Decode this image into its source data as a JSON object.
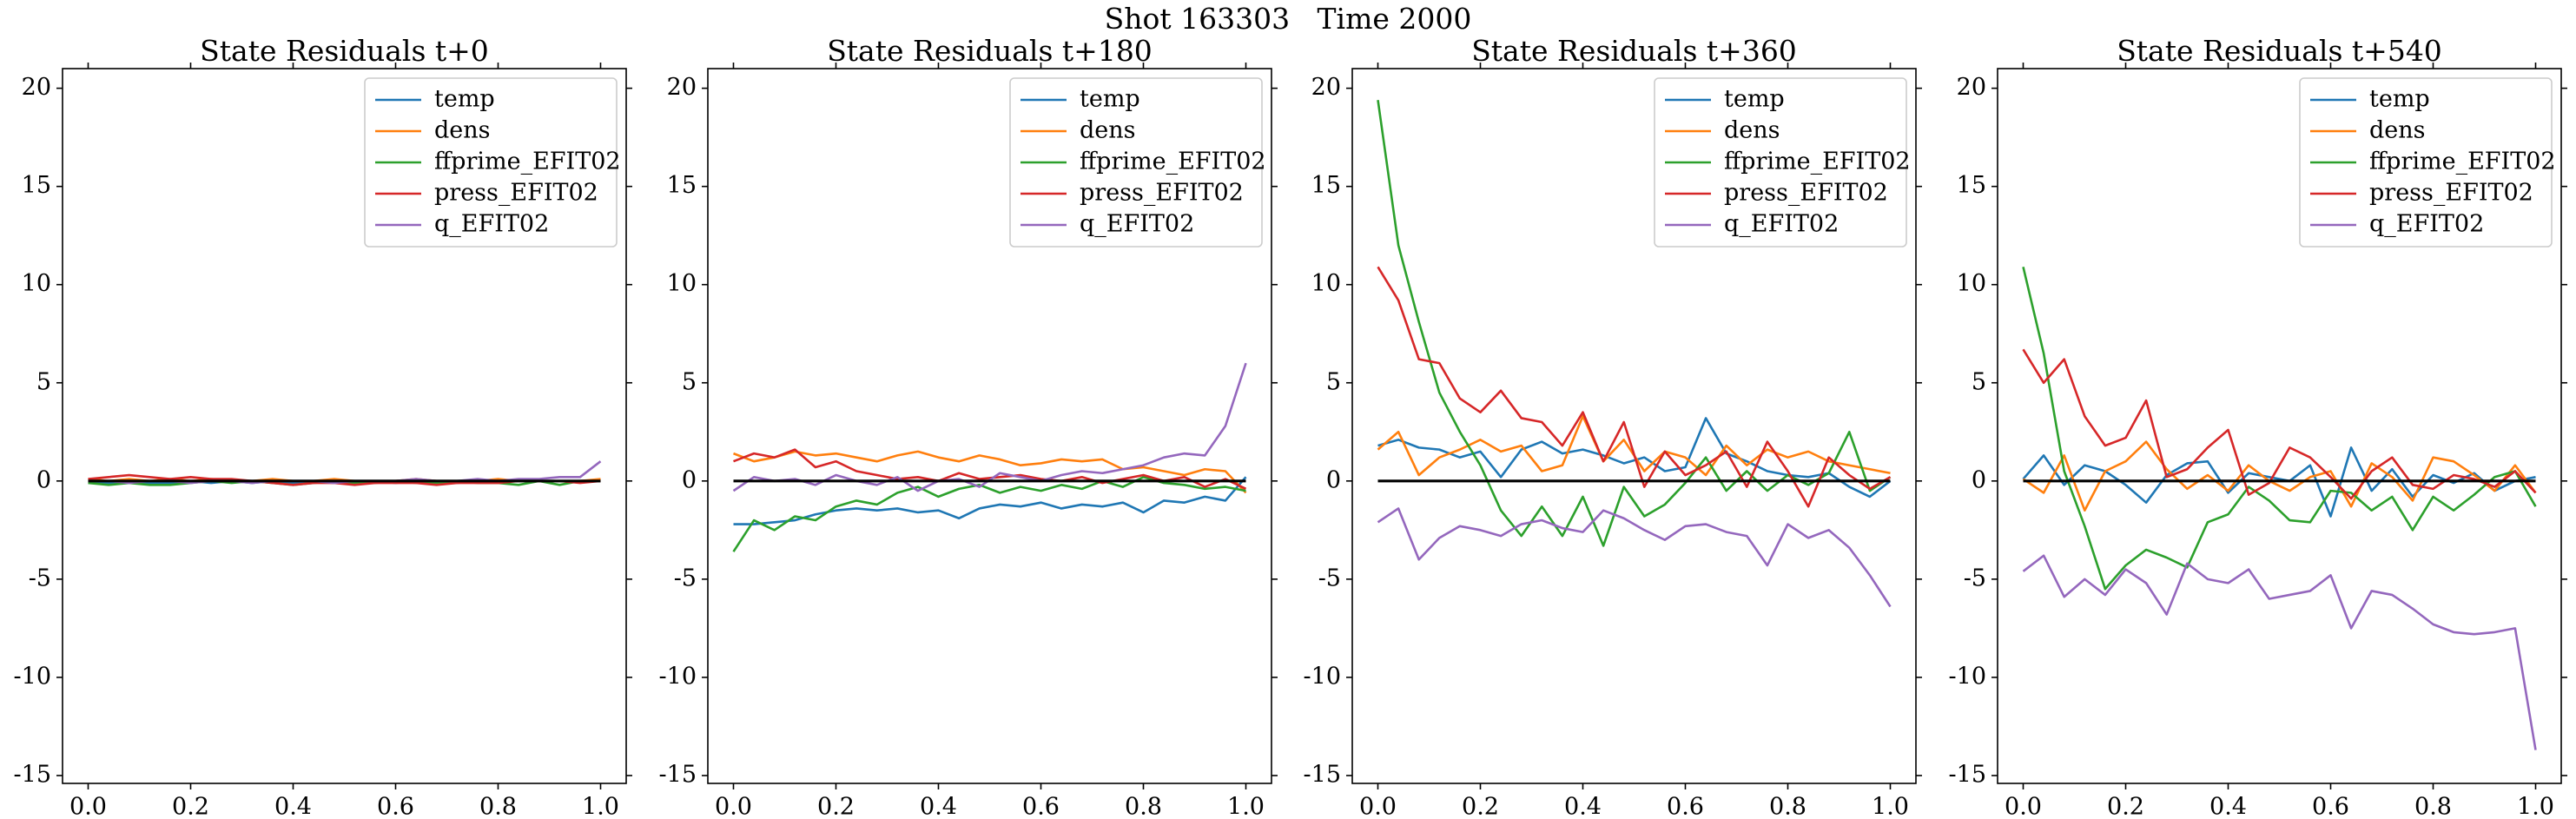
{
  "title": "Shot 163303   Time 2000",
  "chart_data": [
    {
      "type": "line",
      "title": "State Residuals t+0",
      "legend": "upper right",
      "grid": false,
      "hline": 0,
      "xlim": [
        -0.05,
        1.05
      ],
      "ylim": [
        -15.4,
        21
      ],
      "xticks": [
        {
          "value": 0,
          "label": "0.0"
        },
        {
          "value": 0.2,
          "label": "0.2"
        },
        {
          "value": 0.4,
          "label": "0.4"
        },
        {
          "value": 0.6,
          "label": "0.6"
        },
        {
          "value": 0.8,
          "label": "0.8"
        },
        {
          "value": 1,
          "label": "1.0"
        }
      ],
      "yticks": [
        -15,
        -10,
        -5,
        0,
        5,
        10,
        15,
        20
      ],
      "x": [
        0,
        0.04,
        0.08,
        0.12,
        0.16,
        0.2,
        0.24,
        0.28,
        0.32,
        0.36,
        0.4,
        0.44,
        0.48,
        0.52,
        0.56,
        0.6,
        0.64,
        0.68,
        0.72,
        0.76,
        0.8,
        0.84,
        0.88,
        0.92,
        0.96,
        1
      ],
      "series": [
        {
          "name": "temp",
          "color": "#1f77b4",
          "values": [
            -0.1,
            -0.1,
            0.0,
            -0.1,
            -0.1,
            0.0,
            -0.1,
            0.0,
            -0.1,
            0.0,
            -0.1,
            0.0,
            -0.1,
            0.0,
            0.0,
            -0.1,
            0.0,
            0.0,
            -0.1,
            0.0,
            0.0,
            0.0,
            0.0,
            0.0,
            0.0,
            0.0
          ]
        },
        {
          "name": "dens",
          "color": "#ff7f0e",
          "values": [
            0.1,
            0.0,
            0.1,
            0.0,
            0.1,
            0.0,
            0.1,
            0.0,
            0.0,
            0.1,
            0.0,
            0.0,
            0.1,
            0.0,
            0.0,
            0.0,
            0.1,
            0.0,
            0.0,
            0.0,
            0.1,
            0.0,
            0.0,
            0.0,
            0.0,
            0.1
          ]
        },
        {
          "name": "ffprime_EFIT02",
          "color": "#2ca02c",
          "values": [
            -0.1,
            -0.2,
            -0.1,
            -0.2,
            -0.2,
            -0.1,
            0.0,
            -0.1,
            0.0,
            -0.1,
            -0.2,
            -0.1,
            0.0,
            -0.1,
            -0.1,
            0.0,
            -0.1,
            -0.1,
            0.0,
            -0.1,
            -0.1,
            -0.2,
            0.0,
            -0.2,
            0.0,
            0.0
          ]
        },
        {
          "name": "press_EFIT02",
          "color": "#d62728",
          "values": [
            0.1,
            0.2,
            0.3,
            0.2,
            0.1,
            0.2,
            0.1,
            0.1,
            0.0,
            -0.1,
            -0.2,
            -0.1,
            -0.1,
            -0.2,
            -0.1,
            -0.1,
            -0.1,
            -0.2,
            -0.1,
            -0.1,
            -0.1,
            0.0,
            0.0,
            0.0,
            -0.1,
            0.0
          ]
        },
        {
          "name": "q_EFIT02",
          "color": "#9467bd",
          "values": [
            0.0,
            0.0,
            -0.1,
            0.0,
            0.0,
            -0.1,
            0.0,
            0.0,
            -0.1,
            0.0,
            0.0,
            0.0,
            -0.1,
            0.0,
            0.0,
            0.0,
            0.1,
            0.0,
            0.0,
            0.1,
            0.0,
            0.1,
            0.1,
            0.2,
            0.2,
            1.0
          ]
        }
      ]
    },
    {
      "type": "line",
      "title": "State Residuals t+180",
      "legend": "upper right",
      "grid": false,
      "hline": 0,
      "xlim": [
        -0.05,
        1.05
      ],
      "ylim": [
        -15.4,
        21
      ],
      "xticks": [
        {
          "value": 0,
          "label": "0.0"
        },
        {
          "value": 0.2,
          "label": "0.2"
        },
        {
          "value": 0.4,
          "label": "0.4"
        },
        {
          "value": 0.6,
          "label": "0.6"
        },
        {
          "value": 0.8,
          "label": "0.8"
        },
        {
          "value": 1,
          "label": "1.0"
        }
      ],
      "yticks": [
        -15,
        -10,
        -5,
        0,
        5,
        10,
        15,
        20
      ],
      "x": [
        0,
        0.04,
        0.08,
        0.12,
        0.16,
        0.2,
        0.24,
        0.28,
        0.32,
        0.36,
        0.4,
        0.44,
        0.48,
        0.52,
        0.56,
        0.6,
        0.64,
        0.68,
        0.72,
        0.76,
        0.8,
        0.84,
        0.88,
        0.92,
        0.96,
        1
      ],
      "series": [
        {
          "name": "temp",
          "color": "#1f77b4",
          "values": [
            -2.2,
            -2.2,
            -2.1,
            -2.0,
            -1.7,
            -1.5,
            -1.4,
            -1.5,
            -1.4,
            -1.6,
            -1.5,
            -1.9,
            -1.4,
            -1.2,
            -1.3,
            -1.1,
            -1.4,
            -1.2,
            -1.3,
            -1.1,
            -1.6,
            -1.0,
            -1.1,
            -0.8,
            -1.0,
            0.2
          ]
        },
        {
          "name": "dens",
          "color": "#ff7f0e",
          "values": [
            1.4,
            1.0,
            1.2,
            1.5,
            1.3,
            1.4,
            1.2,
            1.0,
            1.3,
            1.5,
            1.2,
            1.0,
            1.3,
            1.1,
            0.8,
            0.9,
            1.1,
            1.0,
            1.1,
            0.6,
            0.7,
            0.5,
            0.3,
            0.6,
            0.5,
            -0.6
          ]
        },
        {
          "name": "ffprime_EFIT02",
          "color": "#2ca02c",
          "values": [
            -3.6,
            -2.0,
            -2.5,
            -1.8,
            -2.0,
            -1.3,
            -1.0,
            -1.2,
            -0.6,
            -0.3,
            -0.8,
            -0.4,
            -0.2,
            -0.6,
            -0.3,
            -0.5,
            -0.2,
            -0.4,
            0.0,
            -0.3,
            0.2,
            -0.1,
            -0.2,
            -0.4,
            -0.3,
            -0.5
          ]
        },
        {
          "name": "press_EFIT02",
          "color": "#d62728",
          "values": [
            1.0,
            1.4,
            1.2,
            1.6,
            0.7,
            1.0,
            0.5,
            0.3,
            0.1,
            0.2,
            0.0,
            0.4,
            0.1,
            0.2,
            0.3,
            0.1,
            0.0,
            0.2,
            -0.1,
            0.1,
            0.3,
            0.0,
            0.2,
            -0.3,
            0.1,
            -0.4
          ]
        },
        {
          "name": "q_EFIT02",
          "color": "#9467bd",
          "values": [
            -0.5,
            0.2,
            0.0,
            0.1,
            -0.2,
            0.3,
            0.0,
            -0.2,
            0.2,
            -0.5,
            0.0,
            0.1,
            -0.3,
            0.4,
            0.2,
            0.0,
            0.3,
            0.5,
            0.4,
            0.6,
            0.8,
            1.2,
            1.4,
            1.3,
            2.8,
            6.0
          ]
        }
      ]
    },
    {
      "type": "line",
      "title": "State Residuals t+360",
      "legend": "upper right",
      "grid": false,
      "hline": 0,
      "xlim": [
        -0.05,
        1.05
      ],
      "ylim": [
        -15.4,
        21
      ],
      "xticks": [
        {
          "value": 0,
          "label": "0.0"
        },
        {
          "value": 0.2,
          "label": "0.2"
        },
        {
          "value": 0.4,
          "label": "0.4"
        },
        {
          "value": 0.6,
          "label": "0.6"
        },
        {
          "value": 0.8,
          "label": "0.8"
        },
        {
          "value": 1,
          "label": "1.0"
        }
      ],
      "yticks": [
        -15,
        -10,
        -5,
        0,
        5,
        10,
        15,
        20
      ],
      "x": [
        0,
        0.04,
        0.08,
        0.12,
        0.16,
        0.2,
        0.24,
        0.28,
        0.32,
        0.36,
        0.4,
        0.44,
        0.48,
        0.52,
        0.56,
        0.6,
        0.64,
        0.68,
        0.72,
        0.76,
        0.8,
        0.84,
        0.88,
        0.92,
        0.96,
        1
      ],
      "series": [
        {
          "name": "temp",
          "color": "#1f77b4",
          "values": [
            1.8,
            2.1,
            1.7,
            1.6,
            1.2,
            1.5,
            0.2,
            1.6,
            2.0,
            1.4,
            1.6,
            1.3,
            0.9,
            1.2,
            0.5,
            0.7,
            3.2,
            1.4,
            1.0,
            0.5,
            0.3,
            0.2,
            0.4,
            -0.3,
            -0.8,
            0.0
          ]
        },
        {
          "name": "dens",
          "color": "#ff7f0e",
          "values": [
            1.6,
            2.5,
            0.3,
            1.2,
            1.6,
            2.1,
            1.5,
            1.8,
            0.5,
            0.8,
            3.3,
            1.0,
            2.1,
            0.5,
            1.5,
            1.2,
            0.3,
            1.8,
            0.8,
            1.6,
            1.2,
            1.5,
            1.0,
            0.8,
            0.6,
            0.4
          ]
        },
        {
          "name": "ffprime_EFIT02",
          "color": "#2ca02c",
          "values": [
            19.4,
            12.0,
            8.1,
            4.5,
            2.5,
            0.8,
            -1.5,
            -2.8,
            -1.3,
            -2.8,
            -0.8,
            -3.3,
            -0.3,
            -1.8,
            -1.2,
            -0.1,
            1.2,
            -0.5,
            0.5,
            -0.5,
            0.3,
            -0.2,
            0.4,
            2.5,
            -0.5,
            0.2
          ]
        },
        {
          "name": "press_EFIT02",
          "color": "#d62728",
          "values": [
            10.9,
            9.2,
            6.2,
            6.0,
            4.2,
            3.5,
            4.6,
            3.2,
            3.0,
            1.8,
            3.5,
            1.0,
            3.0,
            -0.3,
            1.5,
            0.3,
            0.8,
            1.5,
            -0.3,
            2.0,
            0.5,
            -1.3,
            1.2,
            0.3,
            -0.4,
            0.2
          ]
        },
        {
          "name": "q_EFIT02",
          "color": "#9467bd",
          "values": [
            -2.1,
            -1.4,
            -4.0,
            -2.9,
            -2.3,
            -2.5,
            -2.8,
            -2.2,
            -2.0,
            -2.4,
            -2.6,
            -1.5,
            -1.9,
            -2.5,
            -3.0,
            -2.3,
            -2.2,
            -2.6,
            -2.8,
            -4.3,
            -2.2,
            -2.9,
            -2.5,
            -3.4,
            -4.8,
            -6.4
          ]
        }
      ]
    },
    {
      "type": "line",
      "title": "State Residuals t+540",
      "legend": "upper right",
      "grid": false,
      "hline": 0,
      "xlim": [
        -0.05,
        1.05
      ],
      "ylim": [
        -15.4,
        21
      ],
      "xticks": [
        {
          "value": 0,
          "label": "0.0"
        },
        {
          "value": 0.2,
          "label": "0.2"
        },
        {
          "value": 0.4,
          "label": "0.4"
        },
        {
          "value": 0.6,
          "label": "0.6"
        },
        {
          "value": 0.8,
          "label": "0.8"
        },
        {
          "value": 1,
          "label": "1.0"
        }
      ],
      "yticks": [
        -15,
        -10,
        -5,
        0,
        5,
        10,
        15,
        20
      ],
      "x": [
        0,
        0.04,
        0.08,
        0.12,
        0.16,
        0.2,
        0.24,
        0.28,
        0.32,
        0.36,
        0.4,
        0.44,
        0.48,
        0.52,
        0.56,
        0.6,
        0.64,
        0.68,
        0.72,
        0.76,
        0.8,
        0.84,
        0.88,
        0.92,
        0.96,
        1
      ],
      "series": [
        {
          "name": "temp",
          "color": "#1f77b4",
          "values": [
            0.1,
            1.3,
            -0.2,
            0.8,
            0.5,
            -0.2,
            -1.1,
            0.3,
            0.9,
            1.0,
            -0.6,
            0.4,
            0.2,
            0.0,
            0.8,
            -1.8,
            1.7,
            -0.5,
            0.6,
            -0.8,
            0.3,
            -0.1,
            0.4,
            -0.5,
            0.0,
            0.2
          ]
        },
        {
          "name": "dens",
          "color": "#ff7f0e",
          "values": [
            0.1,
            -0.6,
            1.3,
            -1.5,
            0.5,
            1.0,
            2.0,
            0.6,
            -0.4,
            0.3,
            -0.5,
            0.8,
            0.0,
            -0.5,
            0.2,
            0.5,
            -1.3,
            0.9,
            0.2,
            -1.0,
            1.2,
            1.0,
            0.3,
            -0.5,
            0.8,
            -0.6
          ]
        },
        {
          "name": "ffprime_EFIT02",
          "color": "#2ca02c",
          "values": [
            10.9,
            6.5,
            0.5,
            -2.3,
            -5.5,
            -4.3,
            -3.5,
            -3.9,
            -4.4,
            -2.1,
            -1.7,
            -0.3,
            -1.0,
            -2.0,
            -2.1,
            -0.5,
            -0.6,
            -1.5,
            -0.8,
            -2.5,
            -0.8,
            -1.5,
            -0.7,
            0.2,
            0.5,
            -1.3
          ]
        },
        {
          "name": "press_EFIT02",
          "color": "#d62728",
          "values": [
            6.7,
            5.0,
            6.2,
            3.3,
            1.8,
            2.2,
            4.1,
            0.2,
            0.6,
            1.7,
            2.6,
            -0.7,
            -0.1,
            1.7,
            1.2,
            0.2,
            -0.9,
            0.5,
            1.2,
            -0.2,
            -0.4,
            0.3,
            0.1,
            -0.3,
            0.5,
            -0.6
          ]
        },
        {
          "name": "q_EFIT02",
          "color": "#9467bd",
          "values": [
            -4.6,
            -3.8,
            -5.9,
            -5.0,
            -5.8,
            -4.5,
            -5.2,
            -6.8,
            -4.2,
            -5.0,
            -5.2,
            -4.5,
            -6.0,
            -5.8,
            -5.6,
            -4.8,
            -7.5,
            -5.6,
            -5.8,
            -6.5,
            -7.3,
            -7.7,
            -7.8,
            -7.7,
            -7.5,
            -13.7
          ]
        }
      ]
    }
  ]
}
